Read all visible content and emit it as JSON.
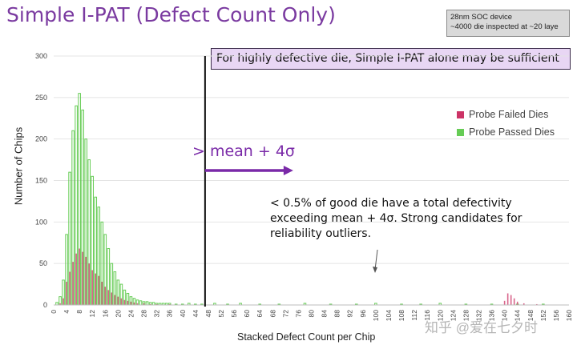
{
  "title": "Simple I-PAT (Defect Count Only)",
  "info_box": {
    "line1": "28nm SOC device",
    "line2": "~4000 die inspected at ~20 laye"
  },
  "callout": "For highly defective die, Simple I-PAT alone may be sufficient",
  "threshold_label": "> mean + 4σ",
  "note": "< 0.5% of good die have a total defectivity exceeding mean + 4σ. Strong candidates for reliability outliers.",
  "watermark": "知乎 @爱在七夕时",
  "colors": {
    "failed": "#cc3366",
    "passed": "#66cc55",
    "arrow": "#7a2aa8",
    "title": "#7a3aa0"
  },
  "chart_data": {
    "type": "bar",
    "xlabel": "Stacked Defect Count per Chip",
    "ylabel": "Number of Chips",
    "ylim": [
      0,
      300
    ],
    "yticks": [
      0,
      50,
      100,
      150,
      200,
      250,
      300
    ],
    "xlim": [
      0,
      160
    ],
    "xticks": [
      0,
      4,
      8,
      12,
      16,
      20,
      24,
      28,
      32,
      36,
      40,
      44,
      48,
      52,
      56,
      60,
      64,
      68,
      72,
      76,
      80,
      84,
      88,
      92,
      96,
      100,
      104,
      108,
      112,
      116,
      120,
      124,
      128,
      132,
      136,
      140,
      144,
      148,
      152,
      156,
      160
    ],
    "grid": true,
    "legend_position": "right",
    "threshold_x": 47,
    "series": [
      {
        "name": "Probe Failed Dies",
        "x": [
          2,
          3,
          4,
          5,
          6,
          7,
          8,
          9,
          10,
          11,
          12,
          13,
          14,
          15,
          16,
          17,
          18,
          19,
          20,
          21,
          22,
          23,
          24,
          25,
          26,
          28,
          30,
          32,
          36,
          140,
          141,
          142,
          143,
          144,
          146,
          150
        ],
        "values": [
          2,
          8,
          28,
          40,
          52,
          62,
          68,
          64,
          58,
          50,
          42,
          38,
          35,
          28,
          22,
          18,
          15,
          12,
          10,
          8,
          6,
          5,
          4,
          3,
          2,
          2,
          1,
          1,
          1,
          5,
          14,
          12,
          8,
          4,
          2,
          1
        ]
      },
      {
        "name": "Probe Passed Dies",
        "x": [
          1,
          2,
          3,
          4,
          5,
          6,
          7,
          8,
          9,
          10,
          11,
          12,
          13,
          14,
          15,
          16,
          17,
          18,
          19,
          20,
          21,
          22,
          23,
          24,
          25,
          26,
          27,
          28,
          29,
          30,
          31,
          32,
          33,
          34,
          35,
          36,
          38,
          40,
          42,
          44,
          46,
          50,
          54,
          58,
          64,
          70,
          78,
          86,
          94,
          100,
          108,
          114,
          120,
          128,
          136,
          144,
          152
        ],
        "values": [
          3,
          10,
          30,
          85,
          160,
          210,
          240,
          255,
          235,
          200,
          175,
          155,
          130,
          118,
          100,
          85,
          68,
          50,
          40,
          30,
          25,
          18,
          14,
          10,
          8,
          6,
          5,
          4,
          4,
          3,
          3,
          2,
          2,
          2,
          2,
          2,
          1,
          1,
          2,
          1,
          1,
          2,
          1,
          2,
          1,
          1,
          2,
          1,
          1,
          2,
          1,
          1,
          2,
          1,
          1,
          1,
          1
        ]
      }
    ]
  }
}
